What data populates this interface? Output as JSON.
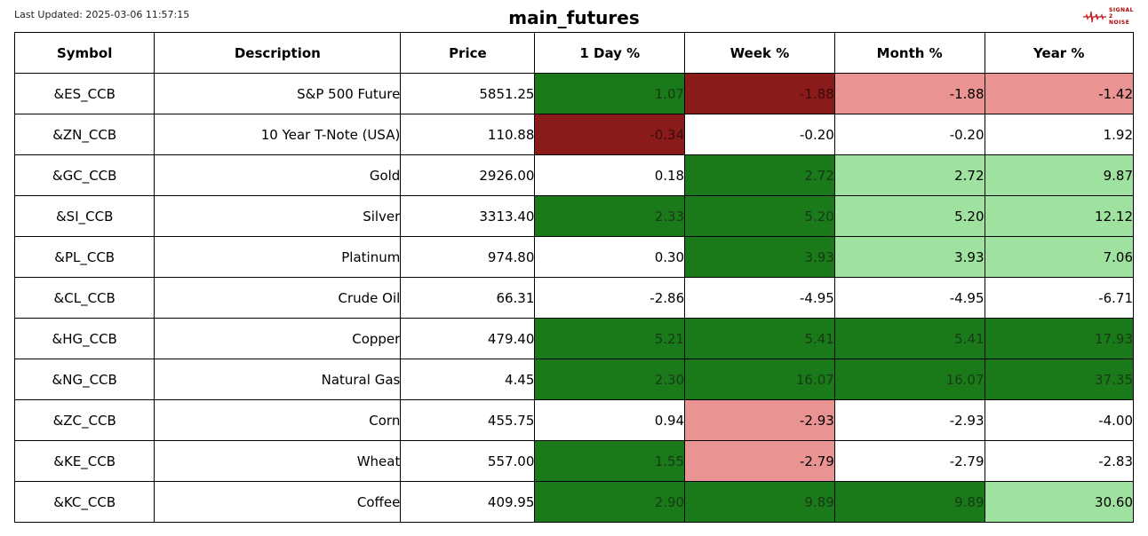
{
  "last_updated_label": "Last Updated: 2025-03-06 11:57:15",
  "title": "main_futures",
  "logo": {
    "line1": "SIGNAL",
    "line2": "2",
    "line3": "NOISE"
  },
  "colors": {
    "neg_dark": "#8b1a1a",
    "neg_light": "#e99393",
    "pos_dark": "#1a7a1a",
    "pos_light": "#9fe29f",
    "none": "#ffffff",
    "text_dark": "#000000",
    "text_on_dark": "#333333"
  },
  "table": {
    "type": "table",
    "columns": [
      "Symbol",
      "Description",
      "Price",
      "1 Day %",
      "Week %",
      "Month %",
      "Year %"
    ],
    "rows": [
      {
        "symbol": "&ES_CCB",
        "description": "S&P 500 Future",
        "price": "5851.25",
        "cells": [
          {
            "v": "1.07",
            "bg": "#1a7a1a",
            "fg": "#163b16"
          },
          {
            "v": "-1.88",
            "bg": "#8b1a1a",
            "fg": "#3a0c0c"
          },
          {
            "v": "-1.88",
            "bg": "#e99393",
            "fg": "#000000"
          },
          {
            "v": "-1.42",
            "bg": "#e99393",
            "fg": "#000000"
          }
        ]
      },
      {
        "symbol": "&ZN_CCB",
        "description": "10 Year T-Note (USA)",
        "price": "110.88",
        "cells": [
          {
            "v": "-0.34",
            "bg": "#8b1a1a",
            "fg": "#3a0c0c"
          },
          {
            "v": "-0.20",
            "bg": "#ffffff",
            "fg": "#000000"
          },
          {
            "v": "-0.20",
            "bg": "#ffffff",
            "fg": "#000000"
          },
          {
            "v": "1.92",
            "bg": "#ffffff",
            "fg": "#000000"
          }
        ]
      },
      {
        "symbol": "&GC_CCB",
        "description": "Gold",
        "price": "2926.00",
        "cells": [
          {
            "v": "0.18",
            "bg": "#ffffff",
            "fg": "#000000"
          },
          {
            "v": "2.72",
            "bg": "#1a7a1a",
            "fg": "#163b16"
          },
          {
            "v": "2.72",
            "bg": "#9fe29f",
            "fg": "#000000"
          },
          {
            "v": "9.87",
            "bg": "#9fe29f",
            "fg": "#000000"
          }
        ]
      },
      {
        "symbol": "&SI_CCB",
        "description": "Silver",
        "price": "3313.40",
        "cells": [
          {
            "v": "2.33",
            "bg": "#1a7a1a",
            "fg": "#163b16"
          },
          {
            "v": "5.20",
            "bg": "#1a7a1a",
            "fg": "#163b16"
          },
          {
            "v": "5.20",
            "bg": "#9fe29f",
            "fg": "#000000"
          },
          {
            "v": "12.12",
            "bg": "#9fe29f",
            "fg": "#000000"
          }
        ]
      },
      {
        "symbol": "&PL_CCB",
        "description": "Platinum",
        "price": "974.80",
        "cells": [
          {
            "v": "0.30",
            "bg": "#ffffff",
            "fg": "#000000"
          },
          {
            "v": "3.93",
            "bg": "#1a7a1a",
            "fg": "#163b16"
          },
          {
            "v": "3.93",
            "bg": "#9fe29f",
            "fg": "#000000"
          },
          {
            "v": "7.06",
            "bg": "#9fe29f",
            "fg": "#000000"
          }
        ]
      },
      {
        "symbol": "&CL_CCB",
        "description": "Crude Oil",
        "price": "66.31",
        "cells": [
          {
            "v": "-2.86",
            "bg": "#ffffff",
            "fg": "#000000"
          },
          {
            "v": "-4.95",
            "bg": "#ffffff",
            "fg": "#000000"
          },
          {
            "v": "-4.95",
            "bg": "#ffffff",
            "fg": "#000000"
          },
          {
            "v": "-6.71",
            "bg": "#ffffff",
            "fg": "#000000"
          }
        ]
      },
      {
        "symbol": "&HG_CCB",
        "description": "Copper",
        "price": "479.40",
        "cells": [
          {
            "v": "5.21",
            "bg": "#1a7a1a",
            "fg": "#163b16"
          },
          {
            "v": "5.41",
            "bg": "#1a7a1a",
            "fg": "#163b16"
          },
          {
            "v": "5.41",
            "bg": "#1a7a1a",
            "fg": "#163b16"
          },
          {
            "v": "17.93",
            "bg": "#1a7a1a",
            "fg": "#163b16"
          }
        ]
      },
      {
        "symbol": "&NG_CCB",
        "description": "Natural Gas",
        "price": "4.45",
        "cells": [
          {
            "v": "2.30",
            "bg": "#1a7a1a",
            "fg": "#163b16"
          },
          {
            "v": "16.07",
            "bg": "#1a7a1a",
            "fg": "#163b16"
          },
          {
            "v": "16.07",
            "bg": "#1a7a1a",
            "fg": "#163b16"
          },
          {
            "v": "37.35",
            "bg": "#1a7a1a",
            "fg": "#163b16"
          }
        ]
      },
      {
        "symbol": "&ZC_CCB",
        "description": "Corn",
        "price": "455.75",
        "cells": [
          {
            "v": "0.94",
            "bg": "#ffffff",
            "fg": "#000000"
          },
          {
            "v": "-2.93",
            "bg": "#e99393",
            "fg": "#000000"
          },
          {
            "v": "-2.93",
            "bg": "#ffffff",
            "fg": "#000000"
          },
          {
            "v": "-4.00",
            "bg": "#ffffff",
            "fg": "#000000"
          }
        ]
      },
      {
        "symbol": "&KE_CCB",
        "description": "Wheat",
        "price": "557.00",
        "cells": [
          {
            "v": "1.55",
            "bg": "#1a7a1a",
            "fg": "#163b16"
          },
          {
            "v": "-2.79",
            "bg": "#e99393",
            "fg": "#000000"
          },
          {
            "v": "-2.79",
            "bg": "#ffffff",
            "fg": "#000000"
          },
          {
            "v": "-2.83",
            "bg": "#ffffff",
            "fg": "#000000"
          }
        ]
      },
      {
        "symbol": "&KC_CCB",
        "description": "Coffee",
        "price": "409.95",
        "cells": [
          {
            "v": "2.90",
            "bg": "#1a7a1a",
            "fg": "#163b16"
          },
          {
            "v": "9.89",
            "bg": "#1a7a1a",
            "fg": "#163b16"
          },
          {
            "v": "9.89",
            "bg": "#1a7a1a",
            "fg": "#163b16"
          },
          {
            "v": "30.60",
            "bg": "#9fe29f",
            "fg": "#000000"
          }
        ]
      }
    ]
  }
}
